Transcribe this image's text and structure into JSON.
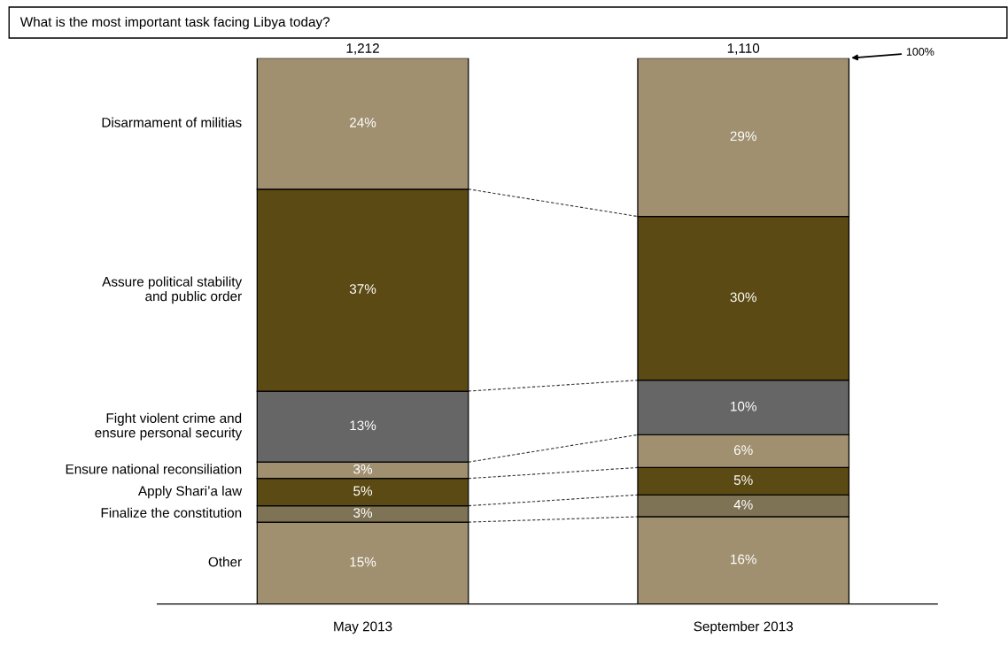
{
  "chart_data": {
    "type": "bar",
    "stacked": true,
    "title": "What is the most important task facing Libya today?",
    "categories": [
      "May 2013",
      "September 2013"
    ],
    "series": [
      {
        "name": "Other",
        "color": "#a09070",
        "values": [
          15,
          16
        ],
        "value_labels": [
          "15%",
          "16%"
        ]
      },
      {
        "name": "Finalize the constitution",
        "color": "#7f7355",
        "values": [
          3,
          4
        ],
        "value_labels": [
          "3%",
          "4%"
        ]
      },
      {
        "name": "Apply Shari’a law",
        "color": "#5c4a14",
        "values": [
          5,
          5
        ],
        "value_labels": [
          "5%",
          "5%"
        ]
      },
      {
        "name": "Ensure national reconsiliation",
        "color": "#a09070",
        "values": [
          3,
          6
        ],
        "value_labels": [
          "3%",
          "6%"
        ]
      },
      {
        "name": "Fight violent crime and\nensure personal security",
        "color": "#666666",
        "values": [
          13,
          10
        ],
        "value_labels": [
          "13%",
          "10%"
        ]
      },
      {
        "name": "Assure political stability\nand public order",
        "color": "#5c4a14",
        "values": [
          37,
          30
        ],
        "value_labels": [
          "37%",
          "30%"
        ]
      },
      {
        "name": "Disarmament of militias",
        "color": "#a09070",
        "values": [
          24,
          29
        ],
        "value_labels": [
          "24%",
          "29%"
        ]
      }
    ],
    "annotations": [
      {
        "text": "1,212",
        "x": "May 2013",
        "y": 100
      },
      {
        "text": "1,110",
        "x": "September 2013",
        "y": 100
      },
      "100%"
    ]
  }
}
